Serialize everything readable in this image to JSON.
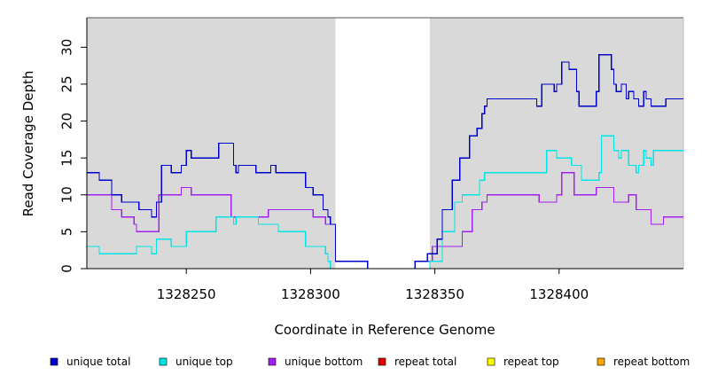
{
  "chart_data": {
    "type": "line",
    "step": true,
    "xlabel": "Coordinate in Reference Genome",
    "ylabel": "Read Coverage Depth",
    "xlim": [
      1328210,
      1328450
    ],
    "ylim": [
      0,
      34
    ],
    "x_ticks": [
      1328250,
      1328300,
      1328350,
      1328400
    ],
    "y_ticks": [
      0,
      5,
      10,
      15,
      20,
      25,
      30
    ],
    "shaded_regions": [
      {
        "from": 1328210,
        "to": 1328310,
        "color": "#d9d9d9"
      },
      {
        "from": 1328348,
        "to": 1328450,
        "color": "#d9d9d9"
      }
    ],
    "legend_position": "bottom",
    "series": [
      {
        "name": "unique total",
        "color": "#0000cc",
        "points": [
          [
            1328210,
            13
          ],
          [
            1328215,
            12
          ],
          [
            1328220,
            10
          ],
          [
            1328224,
            9
          ],
          [
            1328231,
            8
          ],
          [
            1328236,
            7
          ],
          [
            1328238,
            9
          ],
          [
            1328240,
            14
          ],
          [
            1328244,
            13
          ],
          [
            1328248,
            14
          ],
          [
            1328250,
            16
          ],
          [
            1328252,
            15
          ],
          [
            1328263,
            17
          ],
          [
            1328269,
            14
          ],
          [
            1328270,
            13
          ],
          [
            1328271,
            14
          ],
          [
            1328278,
            13
          ],
          [
            1328284,
            14
          ],
          [
            1328286,
            13
          ],
          [
            1328298,
            11
          ],
          [
            1328301,
            10
          ],
          [
            1328305,
            8
          ],
          [
            1328307,
            7
          ],
          [
            1328308,
            6
          ],
          [
            1328310,
            1
          ],
          [
            1328323,
            0
          ],
          [
            1328342,
            1
          ],
          [
            1328347,
            2
          ],
          [
            1328351,
            4
          ],
          [
            1328353,
            8
          ],
          [
            1328357,
            12
          ],
          [
            1328360,
            15
          ],
          [
            1328364,
            18
          ],
          [
            1328367,
            19
          ],
          [
            1328369,
            21
          ],
          [
            1328370,
            22
          ],
          [
            1328371,
            23
          ],
          [
            1328391,
            22
          ],
          [
            1328393,
            25
          ],
          [
            1328398,
            24
          ],
          [
            1328399,
            25
          ],
          [
            1328401,
            28
          ],
          [
            1328404,
            27
          ],
          [
            1328407,
            24
          ],
          [
            1328408,
            22
          ],
          [
            1328415,
            24
          ],
          [
            1328416,
            29
          ],
          [
            1328421,
            27
          ],
          [
            1328422,
            25
          ],
          [
            1328423,
            24
          ],
          [
            1328425,
            25
          ],
          [
            1328427,
            23
          ],
          [
            1328428,
            24
          ],
          [
            1328430,
            23
          ],
          [
            1328432,
            22
          ],
          [
            1328434,
            24
          ],
          [
            1328435,
            23
          ],
          [
            1328437,
            22
          ],
          [
            1328443,
            23
          ],
          [
            1328450,
            23
          ]
        ]
      },
      {
        "name": "unique top",
        "color": "#00e5e5",
        "points": [
          [
            1328210,
            3
          ],
          [
            1328215,
            2
          ],
          [
            1328230,
            3
          ],
          [
            1328236,
            2
          ],
          [
            1328238,
            4
          ],
          [
            1328244,
            3
          ],
          [
            1328250,
            5
          ],
          [
            1328262,
            7
          ],
          [
            1328269,
            6
          ],
          [
            1328270,
            7
          ],
          [
            1328279,
            6
          ],
          [
            1328287,
            5
          ],
          [
            1328298,
            3
          ],
          [
            1328306,
            2
          ],
          [
            1328307,
            1
          ],
          [
            1328308,
            0
          ],
          [
            1328348,
            1
          ],
          [
            1328353,
            5
          ],
          [
            1328358,
            9
          ],
          [
            1328361,
            10
          ],
          [
            1328368,
            12
          ],
          [
            1328370,
            13
          ],
          [
            1328395,
            16
          ],
          [
            1328399,
            15
          ],
          [
            1328405,
            14
          ],
          [
            1328409,
            12
          ],
          [
            1328416,
            13
          ],
          [
            1328417,
            18
          ],
          [
            1328422,
            16
          ],
          [
            1328424,
            15
          ],
          [
            1328425,
            16
          ],
          [
            1328428,
            14
          ],
          [
            1328431,
            13
          ],
          [
            1328432,
            14
          ],
          [
            1328434,
            16
          ],
          [
            1328435,
            15
          ],
          [
            1328437,
            14
          ],
          [
            1328438,
            16
          ],
          [
            1328450,
            16
          ]
        ]
      },
      {
        "name": "unique bottom",
        "color": "#a020f0",
        "points": [
          [
            1328210,
            10
          ],
          [
            1328220,
            8
          ],
          [
            1328224,
            7
          ],
          [
            1328229,
            6
          ],
          [
            1328230,
            5
          ],
          [
            1328239,
            10
          ],
          [
            1328248,
            11
          ],
          [
            1328252,
            10
          ],
          [
            1328268,
            7
          ],
          [
            1328283,
            8
          ],
          [
            1328301,
            7
          ],
          [
            1328306,
            6
          ],
          [
            1328310,
            1
          ],
          [
            1328323,
            0
          ],
          [
            1328342,
            1
          ],
          [
            1328349,
            3
          ],
          [
            1328361,
            5
          ],
          [
            1328365,
            8
          ],
          [
            1328369,
            9
          ],
          [
            1328371,
            10
          ],
          [
            1328392,
            9
          ],
          [
            1328399,
            10
          ],
          [
            1328401,
            13
          ],
          [
            1328406,
            10
          ],
          [
            1328415,
            11
          ],
          [
            1328422,
            9
          ],
          [
            1328428,
            10
          ],
          [
            1328431,
            8
          ],
          [
            1328437,
            6
          ],
          [
            1328442,
            7
          ],
          [
            1328450,
            7
          ]
        ]
      },
      {
        "name": "repeat total",
        "color": "#e00000",
        "points": [
          [
            1328210,
            0
          ],
          [
            1328450,
            0
          ]
        ]
      },
      {
        "name": "repeat top",
        "color": "#ffff00",
        "points": [
          [
            1328210,
            0
          ],
          [
            1328450,
            0
          ]
        ]
      },
      {
        "name": "repeat bottom",
        "color": "#ffa500",
        "points": [
          [
            1328210,
            0
          ],
          [
            1328450,
            0
          ]
        ]
      }
    ]
  }
}
